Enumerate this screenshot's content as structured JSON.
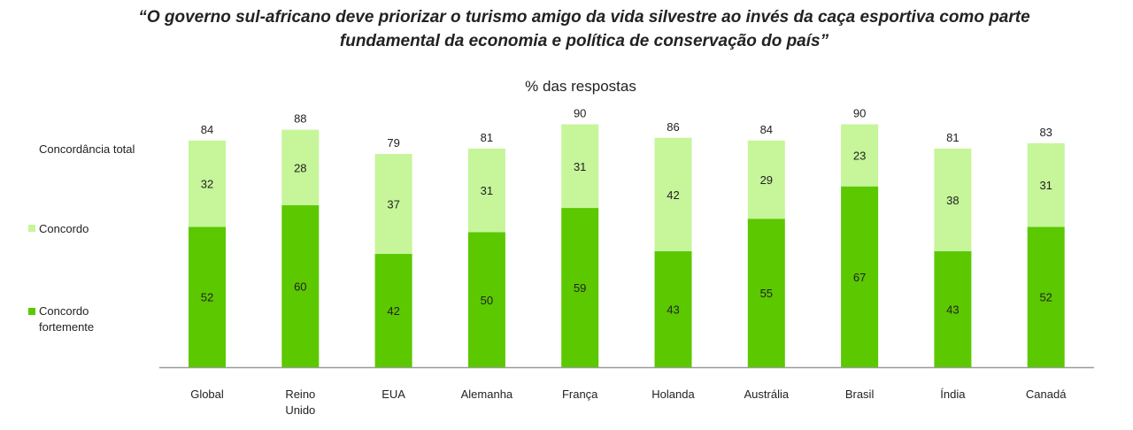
{
  "title_line1": "“O governo sul-africano deve priorizar o turismo amigo da vida silvestre ao invés da caça esportiva como parte",
  "title_line2": "fundamental da economia e política de conservação do país”",
  "chart_data": {
    "type": "bar",
    "stacked": true,
    "subtitle": "% das respostas",
    "total_label": "Concordância total",
    "categories": [
      "Global",
      "Reino Unido",
      "EUA",
      "Alemanha",
      "França",
      "Holanda",
      "Austrália",
      "Brasil",
      "Índia",
      "Canadá"
    ],
    "series": [
      {
        "name": "Concordo fortemente",
        "color": "#5bc800",
        "values": [
          52,
          60,
          42,
          50,
          59,
          43,
          55,
          67,
          43,
          52
        ]
      },
      {
        "name": "Concordo",
        "color": "#c6f59a",
        "values": [
          32,
          28,
          37,
          31,
          31,
          42,
          29,
          23,
          38,
          31
        ]
      }
    ],
    "totals": [
      84,
      88,
      79,
      81,
      90,
      86,
      84,
      90,
      81,
      83
    ],
    "ylim": [
      0,
      100
    ]
  }
}
